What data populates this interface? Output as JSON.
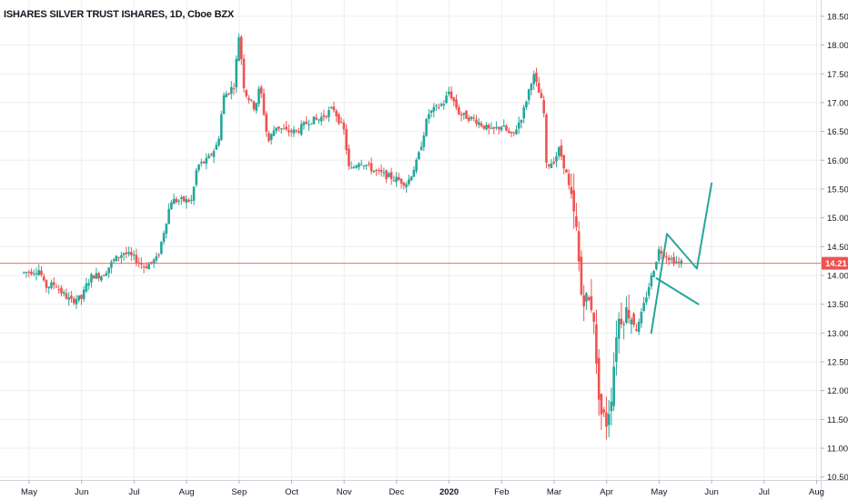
{
  "header": {
    "title": "ISHARES SILVER TRUST ISHARES, 1D, Cboe BZX"
  },
  "chart_data": {
    "type": "candlestick",
    "title": "ISHARES SILVER TRUST ISHARES, 1D, Cboe BZX",
    "ylim": [
      10.4,
      18.65
    ],
    "y_ticks": [
      "18.50",
      "18.00",
      "17.50",
      "17.00",
      "16.50",
      "16.00",
      "15.50",
      "15.00",
      "14.50",
      "14.00",
      "13.50",
      "13.00",
      "12.50",
      "12.00",
      "11.50",
      "11.00",
      "10.50"
    ],
    "x_ticks": [
      {
        "label": "May",
        "month": 0
      },
      {
        "label": "Jun",
        "month": 1
      },
      {
        "label": "Jul",
        "month": 2
      },
      {
        "label": "Aug",
        "month": 3
      },
      {
        "label": "Sep",
        "month": 4
      },
      {
        "label": "Oct",
        "month": 5
      },
      {
        "label": "Nov",
        "month": 6
      },
      {
        "label": "Dec",
        "month": 7
      },
      {
        "label": "2020",
        "month": 8,
        "bold": true
      },
      {
        "label": "Feb",
        "month": 9
      },
      {
        "label": "Mar",
        "month": 10
      },
      {
        "label": "Apr",
        "month": 11
      },
      {
        "label": "May",
        "month": 12
      },
      {
        "label": "Jun",
        "month": 13
      },
      {
        "label": "Jul",
        "month": 14
      },
      {
        "label": "Aug",
        "month": 15
      }
    ],
    "last_price": {
      "value": 14.21,
      "label": "14.21"
    },
    "grid": true,
    "colors": {
      "up": "#26a69a",
      "down": "#ef5350",
      "grid": "#eeeeee",
      "trend": "#26a69a",
      "price_line": "#ef5350"
    },
    "anchors": [
      [
        -0.1,
        14.05
      ],
      [
        0.2,
        14.1
      ],
      [
        0.3,
        13.8
      ],
      [
        0.5,
        13.85
      ],
      [
        0.6,
        13.72
      ],
      [
        0.8,
        13.55
      ],
      [
        0.9,
        13.6
      ],
      [
        1.0,
        13.6
      ],
      [
        1.1,
        13.85
      ],
      [
        1.2,
        14.0
      ],
      [
        1.4,
        14.0
      ],
      [
        1.6,
        14.25
      ],
      [
        1.8,
        14.4
      ],
      [
        2.0,
        14.3
      ],
      [
        2.2,
        14.15
      ],
      [
        2.45,
        14.3
      ],
      [
        2.5,
        14.5
      ],
      [
        2.7,
        15.3
      ],
      [
        2.85,
        15.3
      ],
      [
        3.1,
        15.3
      ],
      [
        3.2,
        15.9
      ],
      [
        3.4,
        16.0
      ],
      [
        3.6,
        16.3
      ],
      [
        3.7,
        17.1
      ],
      [
        3.9,
        17.3
      ],
      [
        4.0,
        18.2
      ],
      [
        4.1,
        17.2
      ],
      [
        4.3,
        16.9
      ],
      [
        4.4,
        17.3
      ],
      [
        4.55,
        16.3
      ],
      [
        4.7,
        16.6
      ],
      [
        4.9,
        16.5
      ],
      [
        5.1,
        16.5
      ],
      [
        5.35,
        16.7
      ],
      [
        5.5,
        16.7
      ],
      [
        5.8,
        16.9
      ],
      [
        6.0,
        16.5
      ],
      [
        6.1,
        15.8
      ],
      [
        6.3,
        16.0
      ],
      [
        6.6,
        15.8
      ],
      [
        6.9,
        15.7
      ],
      [
        7.2,
        15.6
      ],
      [
        7.4,
        16.0
      ],
      [
        7.6,
        16.8
      ],
      [
        7.9,
        17.0
      ],
      [
        8.0,
        17.2
      ],
      [
        8.2,
        16.8
      ],
      [
        8.5,
        16.7
      ],
      [
        8.8,
        16.5
      ],
      [
        9.0,
        16.6
      ],
      [
        9.2,
        16.4
      ],
      [
        9.4,
        16.8
      ],
      [
        9.6,
        17.5
      ],
      [
        9.8,
        16.9
      ],
      [
        9.85,
        15.9
      ],
      [
        10.0,
        16.0
      ],
      [
        10.1,
        16.2
      ],
      [
        10.25,
        15.7
      ],
      [
        10.4,
        14.9
      ],
      [
        10.45,
        14.6
      ],
      [
        10.5,
        13.7
      ],
      [
        10.75,
        13.45
      ],
      [
        10.8,
        12.4
      ],
      [
        10.9,
        11.6
      ],
      [
        11.0,
        11.45
      ],
      [
        11.1,
        12.0
      ],
      [
        11.2,
        13.2
      ],
      [
        11.4,
        13.4
      ],
      [
        11.6,
        13.1
      ],
      [
        11.8,
        13.8
      ],
      [
        12.0,
        14.45
      ],
      [
        12.2,
        14.3
      ],
      [
        12.4,
        14.2
      ],
      [
        12.45,
        14.25
      ]
    ],
    "drawings": [
      {
        "type": "trendline",
        "from": [
          11.85,
          13.0
        ],
        "to": [
          12.15,
          14.72
        ]
      },
      {
        "type": "trendline",
        "from": [
          12.15,
          14.72
        ],
        "to": [
          12.72,
          14.12
        ]
      },
      {
        "type": "trendline",
        "from": [
          11.95,
          13.95
        ],
        "to": [
          12.75,
          13.5
        ]
      },
      {
        "type": "trendline",
        "from": [
          12.72,
          14.12
        ],
        "to": [
          13.0,
          15.6
        ]
      }
    ]
  }
}
